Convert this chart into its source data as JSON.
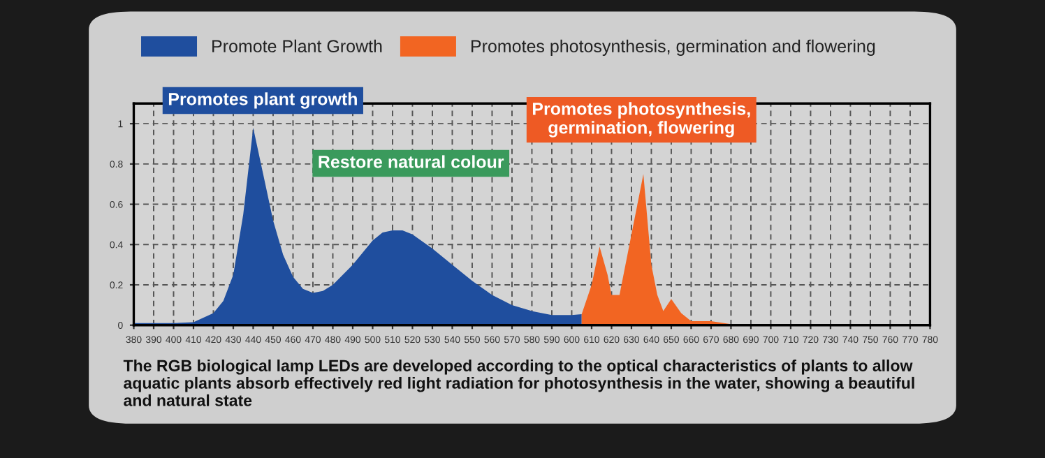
{
  "chart_data": {
    "type": "area",
    "xlim": [
      380,
      780
    ],
    "xticks": [
      380,
      390,
      400,
      410,
      420,
      430,
      440,
      450,
      460,
      470,
      480,
      490,
      500,
      510,
      520,
      530,
      540,
      550,
      560,
      570,
      580,
      590,
      600,
      610,
      620,
      630,
      640,
      650,
      660,
      670,
      680,
      690,
      700,
      710,
      720,
      730,
      740,
      750,
      760,
      770,
      780
    ],
    "ylim": [
      0,
      1.1
    ],
    "yticks": [
      0,
      0.2,
      0.4,
      0.6,
      0.8,
      1
    ],
    "grid": true,
    "legend": "top left",
    "series": [
      {
        "name": "Promote Plant Growth",
        "color": "#1f4e9e",
        "x": [
          380,
          400,
          410,
          420,
          425,
          430,
          435,
          440,
          445,
          450,
          455,
          460,
          465,
          470,
          475,
          480,
          490,
          500,
          505,
          510,
          515,
          520,
          530,
          540,
          550,
          560,
          570,
          580,
          590,
          600,
          605
        ],
        "values": [
          0.01,
          0.01,
          0.015,
          0.06,
          0.12,
          0.25,
          0.55,
          0.98,
          0.75,
          0.52,
          0.35,
          0.24,
          0.18,
          0.16,
          0.17,
          0.2,
          0.3,
          0.42,
          0.46,
          0.47,
          0.47,
          0.45,
          0.38,
          0.3,
          0.22,
          0.15,
          0.1,
          0.07,
          0.05,
          0.05,
          0.055
        ]
      },
      {
        "name": "Promotes photosynthesis, germination and flowering",
        "color": "#f26522",
        "x": [
          605,
          610,
          614,
          618,
          620,
          624,
          628,
          632,
          636,
          640,
          643,
          646,
          650,
          655,
          660,
          670,
          680,
          690
        ],
        "values": [
          0.055,
          0.2,
          0.39,
          0.25,
          0.15,
          0.15,
          0.35,
          0.55,
          0.75,
          0.3,
          0.15,
          0.07,
          0.13,
          0.06,
          0.02,
          0.02,
          0.005,
          0
        ]
      }
    ],
    "annotations": [
      {
        "text": "Promotes plant growth",
        "x": 440,
        "y": 0.98
      },
      "Restore natural colour",
      {
        "text": "Promotes photosynthesis,\ngermination, flowering",
        "x": 636,
        "y": 0.75
      },
      "The RGB biological lamp LEDs are developed according to the optical characteristics of plants to allow aquatic plants absorb effectively red light radiation for photosynthesis in the water, showing a beautiful and natural state"
    ]
  }
}
